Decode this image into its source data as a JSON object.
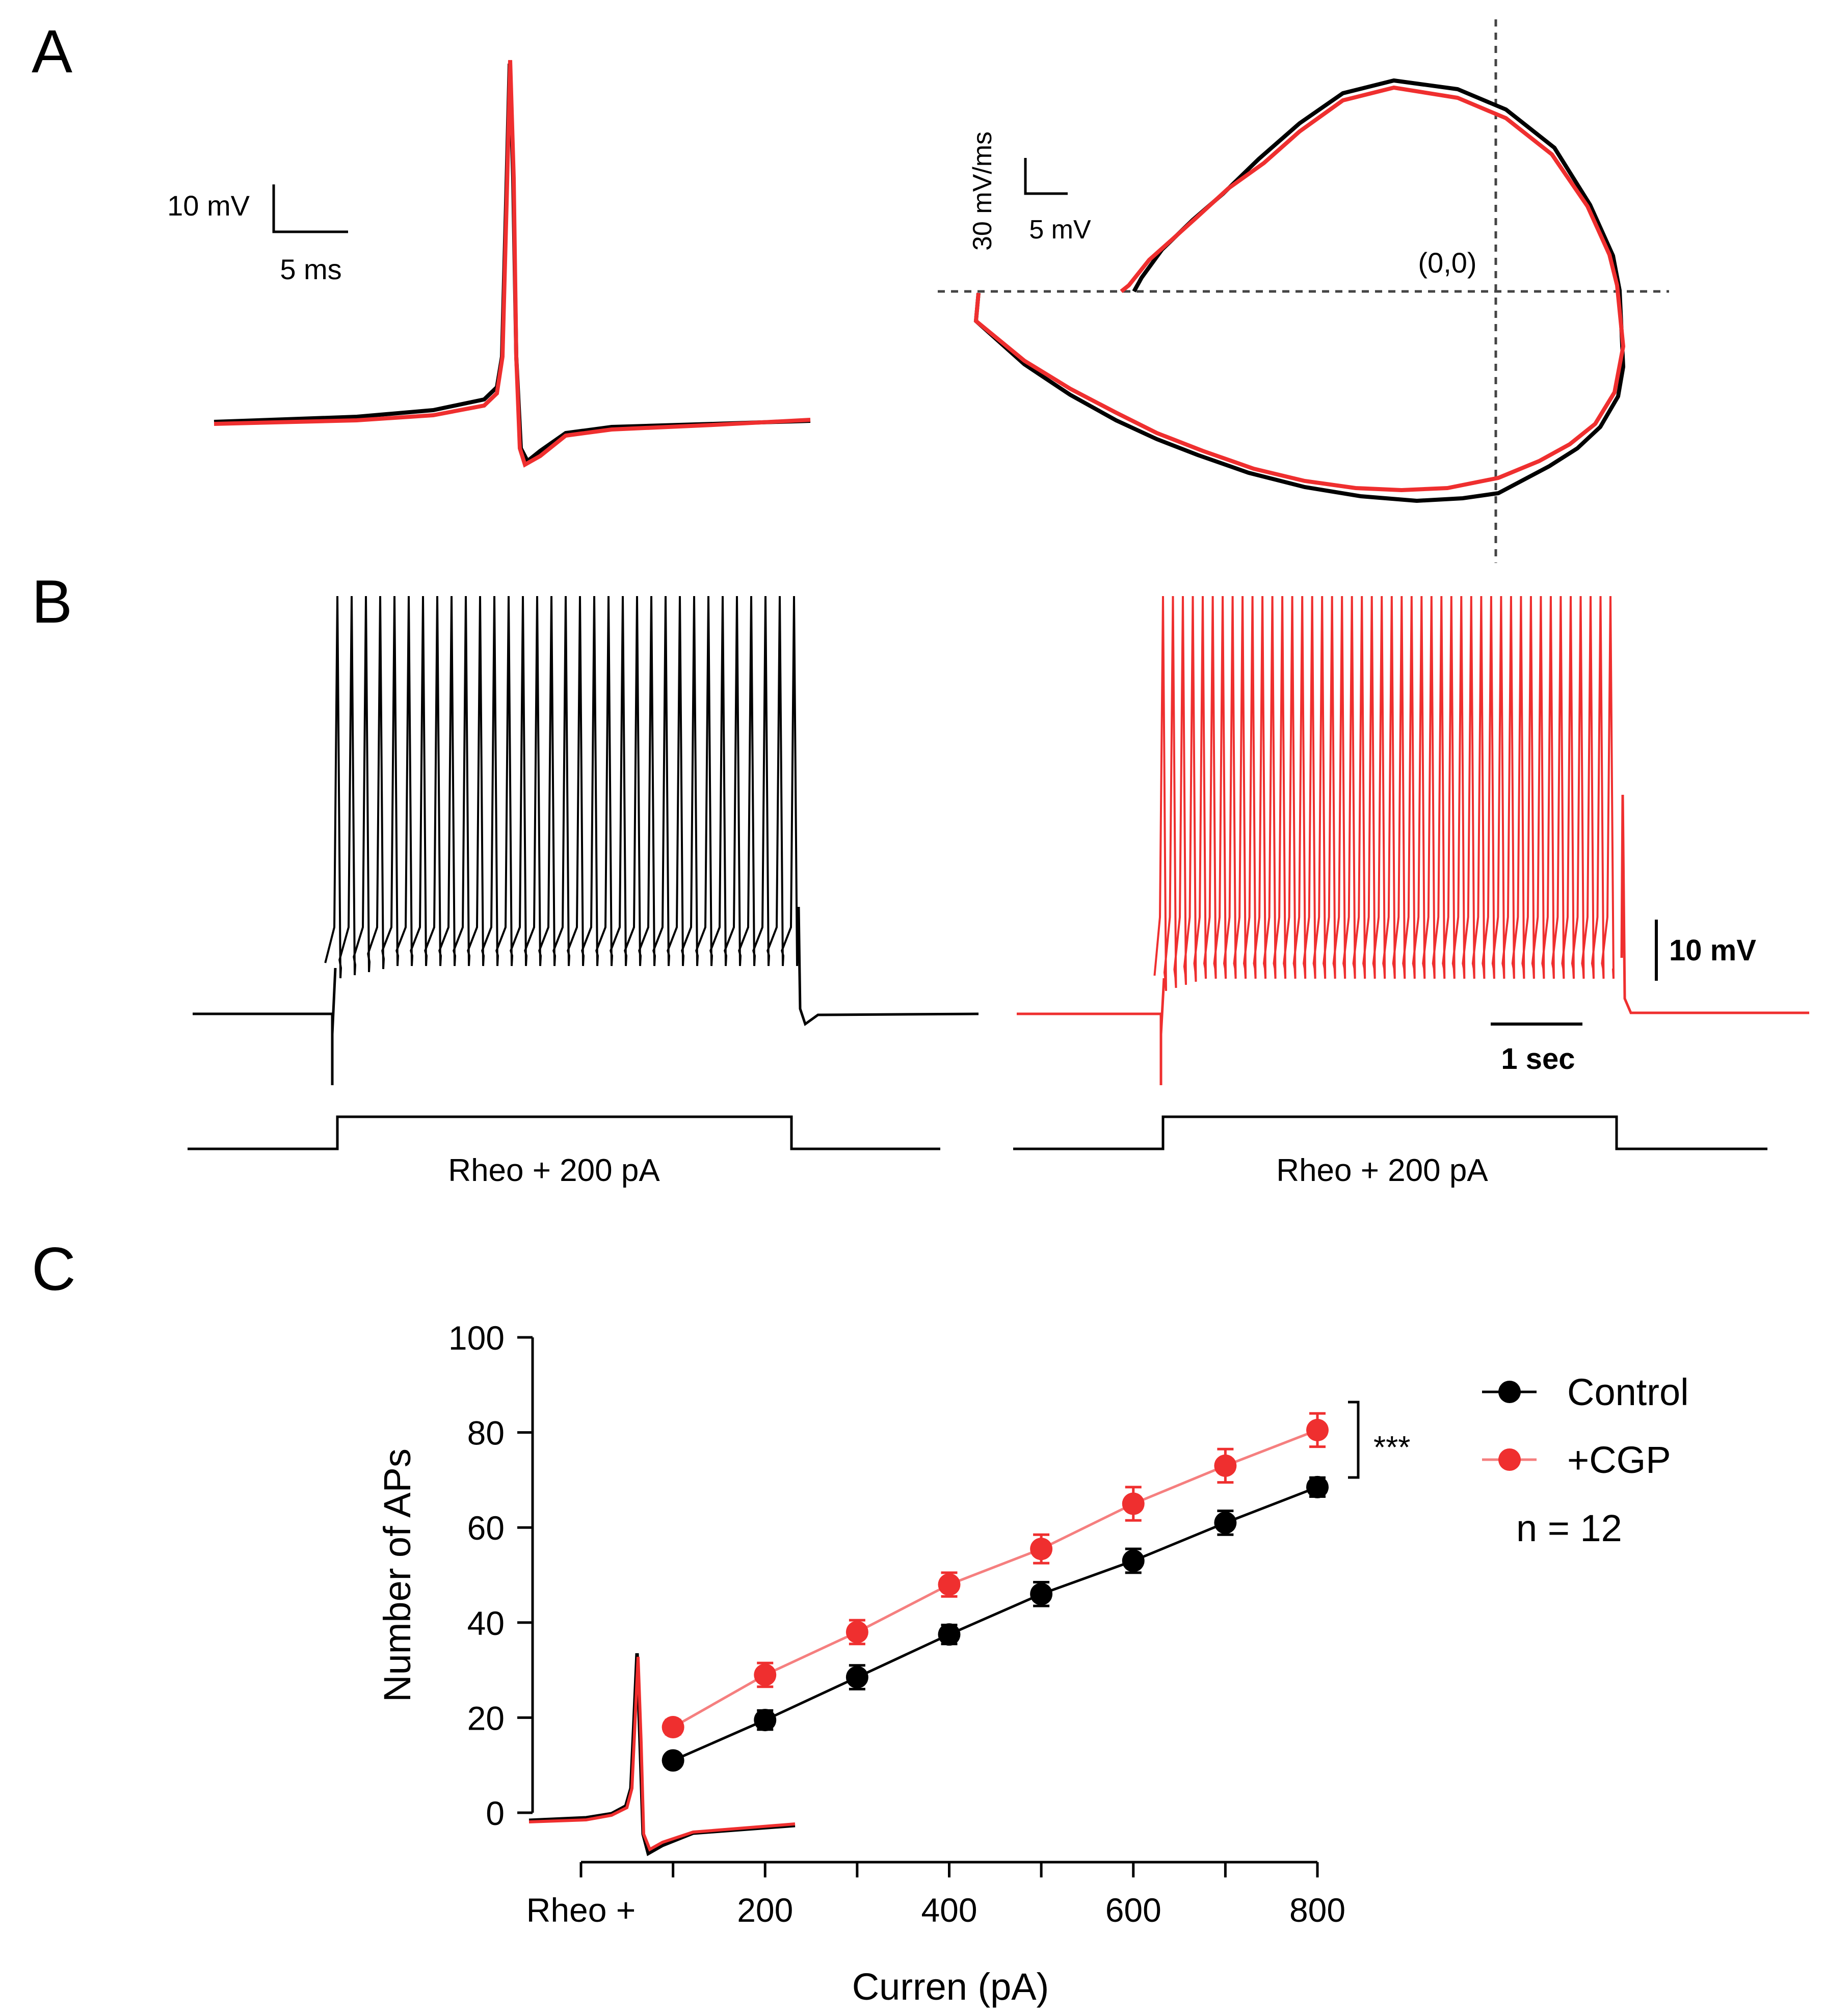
{
  "panels": {
    "a": "A",
    "b": "B",
    "c": "C"
  },
  "panel_a": {
    "left_scale_v": "10 mV",
    "left_scale_t": "5 ms",
    "phase_scale_v": "30 mV/ms",
    "phase_scale_t": "5 mV",
    "origin_label": "(0,0)"
  },
  "panel_b": {
    "stim_label_left": "Rheo + 200 pA",
    "stim_label_right": "Rheo + 200 pA",
    "scale_v": "10 mV",
    "scale_t": "1 sec"
  },
  "colors": {
    "control": "#000000",
    "cgp": "#ef2f2f",
    "cgp_line": "#f57f7f"
  },
  "chart_data": {
    "type": "line",
    "title": "",
    "xlabel": "Curren (pA)",
    "ylabel": "Number of APs",
    "x_tick_labels": [
      "Rheo +",
      "200",
      "400",
      "600",
      "800"
    ],
    "x_tick_values": [
      0,
      200,
      400,
      600,
      800
    ],
    "y_ticks": [
      0,
      20,
      40,
      60,
      80,
      100
    ],
    "ylim": [
      0,
      100
    ],
    "xlim": [
      0,
      800
    ],
    "x": [
      100,
      200,
      300,
      400,
      500,
      600,
      700,
      800
    ],
    "series": [
      {
        "name": "Control",
        "values": [
          11,
          19.5,
          28.5,
          37.5,
          46,
          53,
          61,
          68.5
        ],
        "errors": [
          1,
          2,
          2.5,
          2,
          2.5,
          2.5,
          2.5,
          2
        ]
      },
      {
        "name": "+CGP",
        "values": [
          18,
          29,
          38,
          48,
          55.5,
          65,
          73,
          80.5
        ],
        "errors": [
          1.5,
          2.5,
          2.5,
          2.5,
          3,
          3.5,
          3.5,
          3.5
        ]
      }
    ],
    "annotation": "***",
    "n_label": "n = 12",
    "legend_position": "right"
  }
}
